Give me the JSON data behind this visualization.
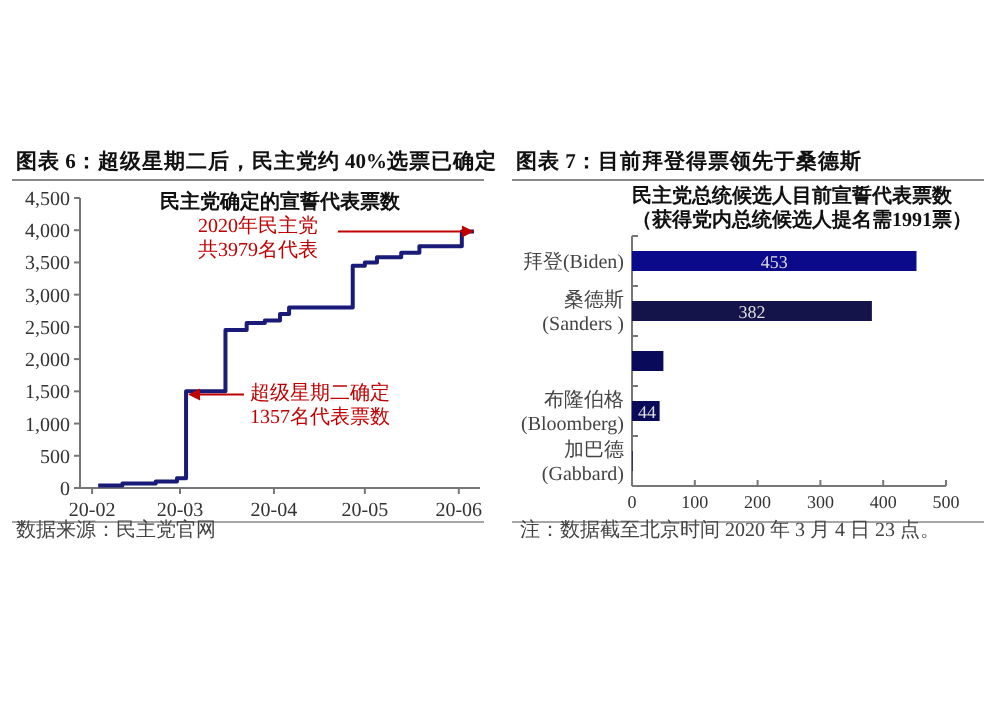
{
  "chart_data": [
    {
      "type": "step",
      "title": "图表 6：超级星期二后，民主党约 40%选票已确定",
      "subtitle": "民主党确定的宣誓代表票数",
      "series": [
        {
          "color": "#1a1a78",
          "x": [
            "2020-02-03",
            "2020-02-11",
            "2020-02-22",
            "2020-02-29",
            "2020-03-03",
            "2020-03-16",
            "2020-03-23",
            "2020-03-29",
            "2020-04-03",
            "2020-04-06",
            "2020-04-27",
            "2020-05-01",
            "2020-05-05",
            "2020-05-13",
            "2020-05-19",
            "2020-06-02",
            "2020-06-06"
          ],
          "values": [
            40,
            70,
            100,
            150,
            1500,
            2450,
            2560,
            2600,
            2700,
            2800,
            3450,
            3500,
            3580,
            3650,
            3750,
            3980,
            3980
          ]
        }
      ],
      "xlim": [
        "2020-01-28",
        "2020-06-08"
      ],
      "xticks": [
        {
          "value": "2020-02-01",
          "label": "20-02"
        },
        {
          "value": "2020-03-01",
          "label": "20-03"
        },
        {
          "value": "2020-04-01",
          "label": "20-04"
        },
        {
          "value": "2020-05-01",
          "label": "20-05"
        },
        {
          "value": "2020-06-01",
          "label": "20-06"
        }
      ],
      "ylim": [
        0,
        4500
      ],
      "yticks": [
        0,
        500,
        {
          "value": 1000,
          "label": "1,000"
        },
        {
          "value": 1500,
          "label": "1,500"
        },
        {
          "value": 2000,
          "label": "2,000"
        },
        {
          "value": 2500,
          "label": "2,500"
        },
        {
          "value": 3000,
          "label": "3,000"
        },
        {
          "value": 3500,
          "label": "3,500"
        },
        {
          "value": 4000,
          "label": "4,000"
        },
        {
          "value": 4500,
          "label": "4,500"
        }
      ],
      "grid": false,
      "annotations": [
        {
          "text": "2020年民主党共3979名代表",
          "x": "2020-06-06",
          "y": 3979
        },
        {
          "text": "超级星期二确定1357名代表票数",
          "x": "2020-03-03",
          "y": 1450
        },
        "数据来源：民主党官网"
      ]
    },
    {
      "type": "bar",
      "orientation": "horizontal",
      "title": "图表 7：目前拜登得票领先于桑德斯",
      "subtitle": "民主党总统候选人目前宣誓代表票数（获得党内总统候选人提名需1991票）",
      "categories": [
        "拜登(Biden)",
        "桑德斯\n(Sanders )",
        null,
        "布隆伯格\n(Bloomberg)",
        "加巴德\n(Gabbard)"
      ],
      "values": [
        453,
        382,
        50,
        44,
        1
      ],
      "value_labels": [
        "453",
        "382",
        null,
        "44",
        null
      ],
      "colors": [
        "#0a0a8a",
        "#14144a",
        "#0a0a5a",
        "#0a0a5a",
        "#0a0a5a"
      ],
      "xlim": [
        0,
        500
      ],
      "xticks": [
        0,
        100,
        200,
        300,
        400,
        500
      ],
      "grid": false,
      "annotations": [
        "注：数据截至北京时间 2020 年 3 月 4 日 23 点。"
      ]
    }
  ]
}
